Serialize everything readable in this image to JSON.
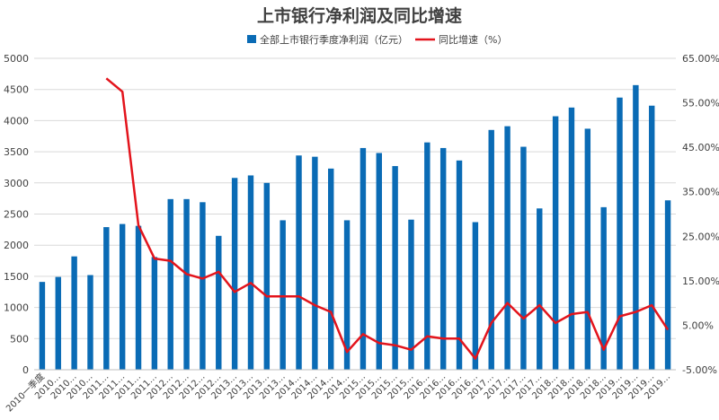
{
  "chart_data": {
    "type": "bar",
    "title": "上市银行净利润及同比增速",
    "xlabel": "",
    "ylabel": "",
    "legend_position": "top-center",
    "grid": true,
    "categories": [
      "2010一季度",
      "2010…",
      "2010…",
      "2010…",
      "2011…",
      "2011…",
      "2011…",
      "2011…",
      "2012…",
      "2012…",
      "2012…",
      "2012…",
      "2013…",
      "2013…",
      "2013…",
      "2013…",
      "2014…",
      "2014…",
      "2014…",
      "2014…",
      "2015…",
      "2015…",
      "2015…",
      "2015…",
      "2016…",
      "2016…",
      "2016…",
      "2016…",
      "2017…",
      "2017…",
      "2017…",
      "2017…",
      "2018…",
      "2018…",
      "2018…",
      "2018…",
      "2019…",
      "2019…",
      "2019…",
      "2019…"
    ],
    "series": [
      {
        "name": "全部上市银行季度净利润（亿元）",
        "type": "bar",
        "axis": "left",
        "color": "#0a6bb5",
        "values": [
          1410,
          1490,
          1820,
          1520,
          2290,
          2340,
          2310,
          1810,
          2740,
          2740,
          2690,
          2150,
          3080,
          3120,
          3000,
          2400,
          3440,
          3420,
          3230,
          2400,
          3560,
          3480,
          3270,
          2410,
          3650,
          3560,
          3360,
          2370,
          3850,
          3910,
          3580,
          2590,
          4070,
          4210,
          3870,
          2610,
          4370,
          4570,
          4240,
          2720
        ]
      },
      {
        "name": "同比增速（%）",
        "type": "line",
        "axis": "right",
        "color": "#e3141c",
        "values": [
          null,
          null,
          null,
          null,
          60.5,
          57.5,
          27.5,
          20.0,
          19.5,
          16.5,
          15.5,
          17.0,
          12.5,
          14.5,
          11.5,
          11.5,
          11.5,
          9.5,
          8.0,
          -1.0,
          3.0,
          1.0,
          0.5,
          -0.5,
          2.5,
          2.0,
          2.0,
          -2.5,
          5.5,
          10.0,
          6.5,
          9.5,
          5.5,
          7.5,
          8.0,
          -0.5,
          7.0,
          8.0,
          9.5,
          4.0
        ]
      }
    ],
    "y_left": {
      "min": 0,
      "max": 5000,
      "ticks": [
        0,
        500,
        1000,
        1500,
        2000,
        2500,
        3000,
        3500,
        4000,
        4500,
        5000
      ],
      "tick_labels": [
        "0",
        "500",
        "1000",
        "1500",
        "2000",
        "2500",
        "3000",
        "3500",
        "4000",
        "4500",
        "5000"
      ]
    },
    "y_right": {
      "min": -5,
      "max": 65,
      "ticks": [
        -5,
        5,
        15,
        25,
        35,
        45,
        55,
        65
      ],
      "tick_labels": [
        "-5.00%",
        "5.00%",
        "15.00%",
        "25.00%",
        "35.00%",
        "45.00%",
        "55.00%",
        "65.00%"
      ]
    }
  }
}
